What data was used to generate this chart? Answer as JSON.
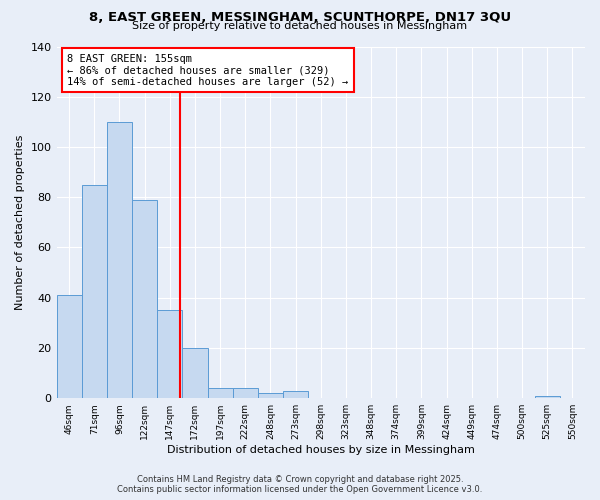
{
  "title": "8, EAST GREEN, MESSINGHAM, SCUNTHORPE, DN17 3QU",
  "subtitle": "Size of property relative to detached houses in Messingham",
  "xlabel": "Distribution of detached houses by size in Messingham",
  "ylabel": "Number of detached properties",
  "bin_labels": [
    "46sqm",
    "71sqm",
    "96sqm",
    "122sqm",
    "147sqm",
    "172sqm",
    "197sqm",
    "222sqm",
    "248sqm",
    "273sqm",
    "298sqm",
    "323sqm",
    "348sqm",
    "374sqm",
    "399sqm",
    "424sqm",
    "449sqm",
    "474sqm",
    "500sqm",
    "525sqm",
    "550sqm"
  ],
  "bar_values": [
    41,
    85,
    110,
    79,
    35,
    20,
    4,
    4,
    2,
    3,
    0,
    0,
    0,
    0,
    0,
    0,
    0,
    0,
    0,
    1,
    0
  ],
  "bar_color": "#c6d9f0",
  "bar_edge_color": "#5b9bd5",
  "vline_x": 4.4,
  "vline_color": "red",
  "annotation_title": "8 EAST GREEN: 155sqm",
  "annotation_line1": "← 86% of detached houses are smaller (329)",
  "annotation_line2": "14% of semi-detached houses are larger (52) →",
  "annotation_box_color": "white",
  "annotation_box_edge": "red",
  "ylim": [
    0,
    140
  ],
  "yticks": [
    0,
    20,
    40,
    60,
    80,
    100,
    120,
    140
  ],
  "footnote1": "Contains HM Land Registry data © Crown copyright and database right 2025.",
  "footnote2": "Contains public sector information licensed under the Open Government Licence v3.0.",
  "bg_color": "#e8eef8",
  "plot_bg_color": "#e8eef8"
}
